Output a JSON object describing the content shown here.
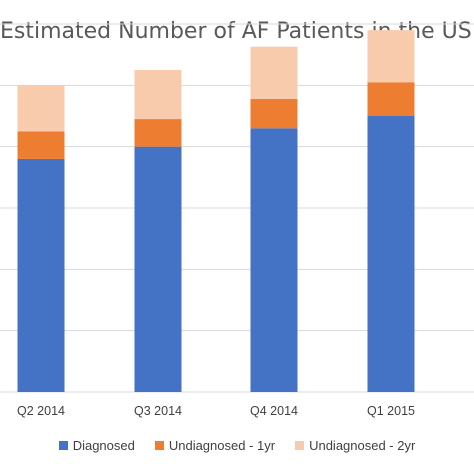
{
  "chart_data": {
    "type": "bar",
    "stacked": true,
    "title": "Estimated Number of AF Patients in the US",
    "categories": [
      "Q2 2014",
      "Q3 2014",
      "Q4 2014",
      "Q1 2015"
    ],
    "series": [
      {
        "name": "Diagnosed",
        "color": "#4472C4",
        "values": [
          3.8,
          4.0,
          4.3,
          4.5
        ]
      },
      {
        "name": "Undiagnosed - 1yr",
        "color": "#ED7D31",
        "values": [
          0.45,
          0.45,
          0.48,
          0.55
        ]
      },
      {
        "name": "Undiagnosed - 2yr",
        "color": "#F8CBAD",
        "values": [
          0.75,
          0.8,
          0.85,
          0.85
        ]
      }
    ],
    "ylim": [
      0,
      6
    ],
    "grid": true,
    "legend_position": "bottom"
  }
}
